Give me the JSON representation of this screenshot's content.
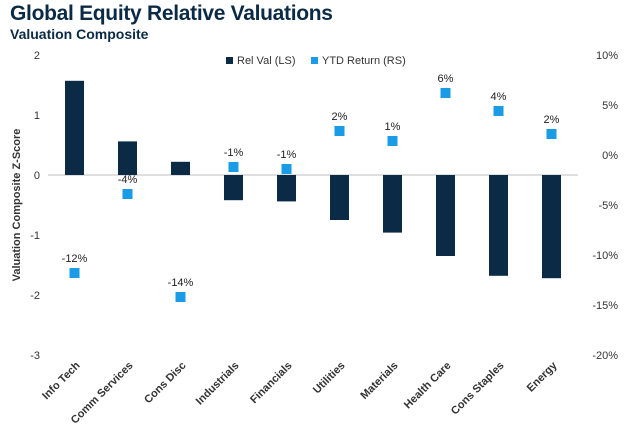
{
  "chart_data": {
    "type": "bar",
    "title": "Global Equity Relative Valuations",
    "subtitle": "Valuation Composite",
    "ylabel": "Valuation Composite Z-Score",
    "categories": [
      "Info Tech",
      "Comm Services",
      "Cons Disc",
      "Industrials",
      "Financials",
      "Utilities",
      "Materials",
      "Health Care",
      "Cons Staples",
      "Energy"
    ],
    "series": [
      {
        "name": "Rel Val (LS)",
        "type": "bar",
        "axis": "left",
        "color": "#0b2a45",
        "values": [
          1.57,
          0.56,
          0.22,
          -0.42,
          -0.44,
          -0.75,
          -0.96,
          -1.35,
          -1.68,
          -1.72
        ]
      },
      {
        "name": "YTD Return (RS)",
        "type": "scatter",
        "axis": "right",
        "color": "#1a9be6",
        "values": [
          -11.8,
          -3.9,
          -14.2,
          -1.2,
          -1.4,
          2.4,
          1.4,
          6.2,
          4.4,
          2.1
        ],
        "labels": [
          "-12%",
          "-4%",
          "-14%",
          "-1%",
          "-1%",
          "2%",
          "1%",
          "6%",
          "4%",
          "2%"
        ]
      }
    ],
    "left_axis": {
      "min": -3,
      "max": 2,
      "ticks": [
        2,
        1,
        0,
        -1,
        -2,
        -3
      ],
      "tick_labels": [
        "2",
        "1",
        "0",
        "-1",
        "-2",
        "-3"
      ]
    },
    "right_axis": {
      "min": -20,
      "max": 10,
      "ticks": [
        10,
        5,
        0,
        -5,
        -10,
        -15,
        -20
      ],
      "tick_labels": [
        "10%",
        "5%",
        "0%",
        "-5%",
        "-10%",
        "-15%",
        "-20%"
      ]
    },
    "legend": "top-center",
    "grid": false
  }
}
